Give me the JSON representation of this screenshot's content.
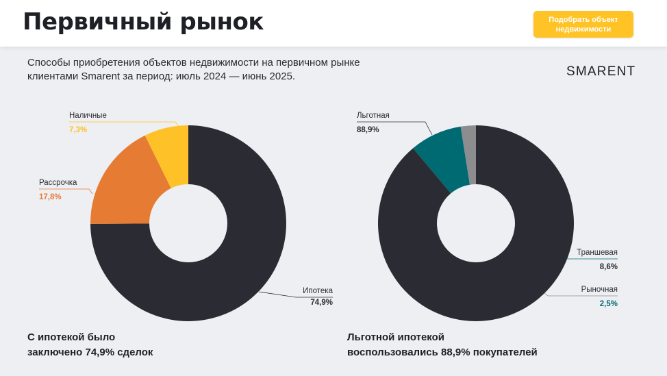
{
  "header": {
    "title": "Первичный рынок",
    "cta_line1": "Подобрать объект",
    "cta_line2": "недвижимости"
  },
  "subtitle_line1": "Способы приобретения объектов недвижимости на первичном рынке",
  "subtitle_line2": "клиентами Smarent за период: июль 2024 — июнь 2025.",
  "brand": "SMARENT",
  "chart_data": [
    {
      "type": "pie",
      "title": "",
      "slices": [
        {
          "label": "Ипотека",
          "value": 74.9,
          "value_label": "74,9%",
          "color": "#2b2c33",
          "label_color": "#2b2c33"
        },
        {
          "label": "Рассрочка",
          "value": 17.8,
          "value_label": "17,8%",
          "color": "#e67b33",
          "label_color": "#e67b33"
        },
        {
          "label": "Наличные",
          "value": 7.3,
          "value_label": "7,3%",
          "color": "#fec228",
          "label_color": "#fec228"
        }
      ],
      "caption_line1": "С ипотекой было",
      "caption_line2": "заключено 74,9% сделок"
    },
    {
      "type": "pie",
      "title": "",
      "slices": [
        {
          "label": "Льготная",
          "value": 88.9,
          "value_label": "88,9%",
          "color": "#2b2c33",
          "label_color": "#2b2c33"
        },
        {
          "label": "Траншевая",
          "value": 8.6,
          "value_label": "8,6%",
          "color": "#006a72",
          "label_color": "#2b2c33"
        },
        {
          "label": "Рыночная",
          "value": 2.5,
          "value_label": "2,5%",
          "color": "#8d8d8f",
          "label_color": "#006a72"
        }
      ],
      "caption_line1": "Льготной ипотекой",
      "caption_line2": "воспользовались 88,9% покупателей"
    }
  ]
}
